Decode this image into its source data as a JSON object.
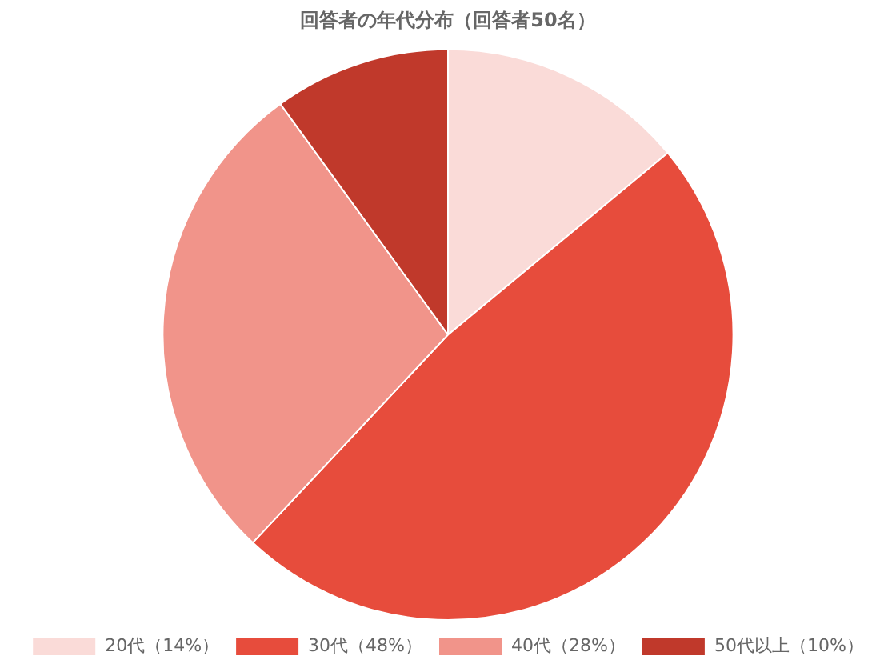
{
  "chart_data": {
    "type": "pie",
    "title": "回答者の年代分布（回答者50名）",
    "categories": [
      "20代（14%）",
      "30代（48%）",
      "40代（28%）",
      "50代以上（10%）"
    ],
    "values": [
      14,
      48,
      28,
      10
    ],
    "colors": [
      "#fadbd8",
      "#e74c3c",
      "#f1948a",
      "#c0392b"
    ],
    "legend": "bottom"
  }
}
